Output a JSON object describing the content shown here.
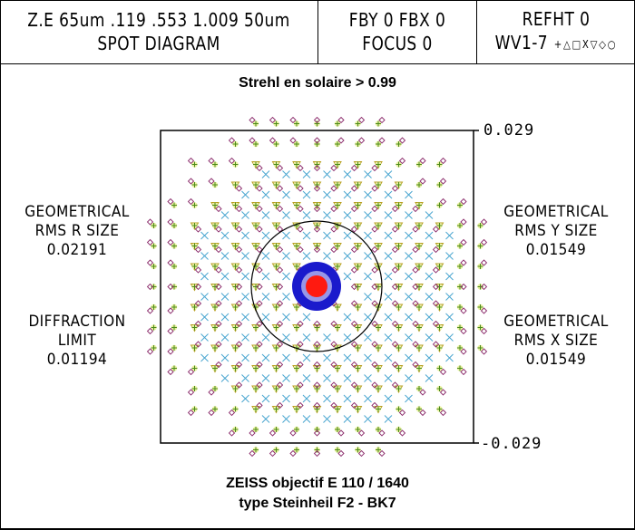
{
  "header": {
    "cell1": {
      "line1": "Z.E 65um .119 .553 1.009 50um",
      "line2": "SPOT DIAGRAM"
    },
    "cell2": {
      "line1": "FBY 0 FBX 0",
      "line2": "FOCUS 0"
    },
    "cell3": {
      "line1": "REFHT 0",
      "line2": "WV1-7",
      "symbols": "+△□X▽◇○"
    }
  },
  "annotation_top": "Strehl en solaire > 0.99",
  "left_labels": {
    "geom_r": {
      "line1": "GEOMETRICAL",
      "line2": "RMS R SIZE",
      "value": "0.02191"
    },
    "diffraction": {
      "line1": "DIFFRACTION",
      "line2": "LIMIT",
      "value": "0.01194"
    }
  },
  "right_labels": {
    "geom_y": {
      "line1": "GEOMETRICAL",
      "line2": "RMS Y SIZE",
      "value": "0.01549"
    },
    "geom_x": {
      "line1": "GEOMETRICAL",
      "line2": "RMS X SIZE",
      "value": "0.01549"
    }
  },
  "axis": {
    "top": "0.029",
    "bottom": "-0.029"
  },
  "caption": {
    "line1": "ZEISS objectif E 110 / 1640",
    "line2": "type Steinheil F2 - BK7"
  },
  "colors": {
    "frame": "#000000",
    "airy_circle": "#000000",
    "spot_core": "#ff0000",
    "spot_ring": "#1a1acc",
    "marker_plus": "#4c8a1a",
    "marker_diamond": "#8a2a6a",
    "marker_triangle": "#b8a020",
    "marker_x": "#4aa6d0",
    "halo": "#e8f0a0"
  },
  "chart_data": {
    "type": "scatter",
    "title": "SPOT DIAGRAM",
    "subtitle": "Z.E 65um .119 .553 1.009 50um",
    "xlabel": "",
    "ylabel": "",
    "xlim": [
      -0.029,
      0.029
    ],
    "ylim": [
      -0.029,
      0.029
    ],
    "legend": [
      "WV1 +",
      "WV2 △",
      "WV3 □",
      "WV4 X",
      "WV5 ▽",
      "WV6 ◇",
      "WV7 ○"
    ],
    "annotations": [
      "Strehl en solaire > 0.99",
      "ZEISS objectif E 110 / 1640",
      "type Steinheil F2 - BK7"
    ],
    "metrics": {
      "geometrical_rms_r_size": 0.02191,
      "geometrical_rms_y_size": 0.01549,
      "geometrical_rms_x_size": 0.01549,
      "diffraction_limit": 0.01194
    },
    "field": {
      "fby": 0,
      "fbx": 0,
      "focus": 0,
      "refht": 0
    }
  }
}
